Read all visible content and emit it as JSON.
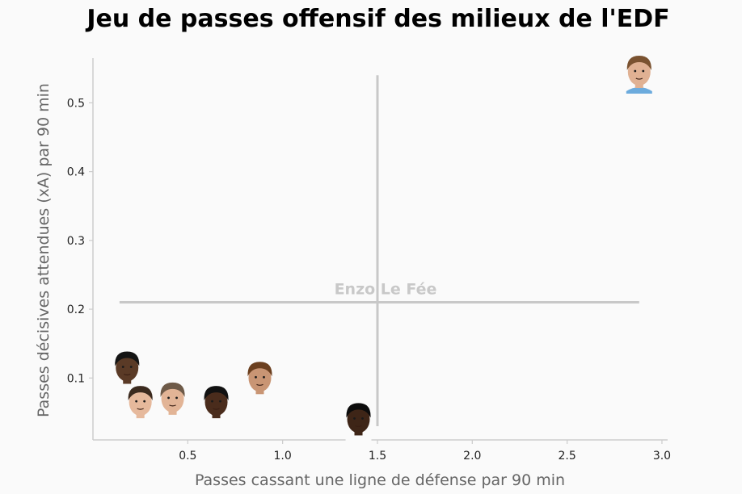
{
  "chart_data": {
    "type": "scatter",
    "title": "Jeu de passes offensif des milieux de l'EDF",
    "xlabel": "Passes cassant une ligne de défense par 90 min",
    "ylabel": "Passes décisives attendues (xA) par 90 min",
    "xlim": [
      0.0,
      3.03
    ],
    "ylim": [
      0.01,
      0.565
    ],
    "xticks": [
      0.5,
      1.0,
      1.5,
      2.0,
      2.5,
      3.0
    ],
    "xtick_labels": [
      "0.5",
      "1.0",
      "1.5",
      "2.0",
      "2.5",
      "3.0"
    ],
    "yticks": [
      0.1,
      0.2,
      0.3,
      0.4,
      0.5
    ],
    "ytick_labels": [
      "0.1",
      "0.2",
      "0.3",
      "0.4",
      "0.5"
    ],
    "grid": false,
    "marker": "player-face",
    "reference_lines": {
      "label": "Enzo Le Fée",
      "x": 1.5,
      "y": 0.21,
      "x_span": [
        0.14,
        2.88
      ],
      "y_span": [
        0.03,
        0.54
      ],
      "color": "#c8c8c8"
    },
    "points": [
      {
        "x": 2.88,
        "y": 0.545,
        "skin": "#e0b193",
        "hair": "#7a5230",
        "shirt": "#6cabdd"
      },
      {
        "x": 0.18,
        "y": 0.115,
        "skin": "#5a3a26",
        "hair": "#141414",
        "shirt": "#fafafa"
      },
      {
        "x": 0.88,
        "y": 0.1,
        "skin": "#c99574",
        "hair": "#6b3f1f",
        "shirt": "#fafafa"
      },
      {
        "x": 0.25,
        "y": 0.065,
        "skin": "#e6b99c",
        "hair": "#3b2a1e",
        "shirt": "#fafafa"
      },
      {
        "x": 0.42,
        "y": 0.07,
        "skin": "#e2b496",
        "hair": "#6e5a48",
        "shirt": "#fafafa"
      },
      {
        "x": 0.65,
        "y": 0.065,
        "skin": "#4a2c1c",
        "hair": "#111111",
        "shirt": "#fafafa"
      },
      {
        "x": 1.4,
        "y": 0.04,
        "skin": "#3e2517",
        "hair": "#0c0c0c",
        "shirt": "#fafafa"
      }
    ]
  }
}
